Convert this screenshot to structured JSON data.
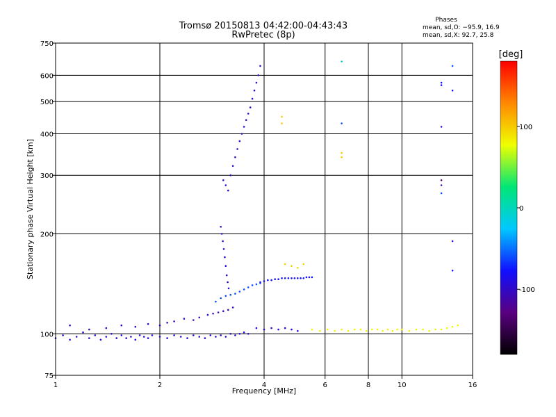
{
  "chart_data": {
    "type": "scatter",
    "title": "Tromsø 20150813 04:42:00-04:43:43",
    "subtitle": "RwPretec (8p)",
    "xlabel": "Frequency [MHz]",
    "ylabel": "Stationary phase Virtual Height [km]",
    "xscale": "log",
    "yscale": "log",
    "xlim": [
      1,
      16
    ],
    "ylim": [
      75,
      750
    ],
    "xticks": [
      1,
      2,
      4,
      6,
      8,
      10,
      16
    ],
    "yticks": [
      75,
      100,
      200,
      300,
      400,
      500,
      600,
      750
    ],
    "grid": true,
    "phases_box": {
      "heading": "Phases",
      "line_o": "mean, sd,O: −95.9, 16.9",
      "line_x": "mean, sd,X:  92.7, 25.8"
    },
    "colorbar": {
      "label": "[deg]",
      "ticks": [
        100,
        0,
        -100
      ],
      "range": [
        -180,
        180
      ],
      "colors": [
        "#000000",
        "#5a0080",
        "#1010ff",
        "#00c8ff",
        "#00e676",
        "#f0ff00",
        "#ff8800",
        "#ff0000"
      ]
    },
    "series": [
      {
        "points": [
          [
            1.0,
            97,
            -95
          ],
          [
            1.05,
            99,
            -95
          ],
          [
            1.1,
            96,
            -95
          ],
          [
            1.15,
            98,
            -95
          ],
          [
            1.2,
            101,
            -95
          ],
          [
            1.25,
            97,
            -95
          ],
          [
            1.3,
            99,
            -95
          ],
          [
            1.35,
            96,
            -95
          ],
          [
            1.4,
            98,
            -95
          ],
          [
            1.45,
            100,
            -95
          ],
          [
            1.5,
            97,
            -95
          ],
          [
            1.55,
            99,
            -95
          ],
          [
            1.6,
            97,
            -95
          ],
          [
            1.65,
            98,
            -95
          ],
          [
            1.7,
            96,
            -95
          ],
          [
            1.75,
            99,
            -95
          ],
          [
            1.8,
            98,
            -95
          ],
          [
            1.85,
            97,
            -95
          ],
          [
            1.9,
            99,
            -95
          ],
          [
            2.0,
            98,
            -95
          ],
          [
            2.1,
            97,
            -95
          ],
          [
            2.2,
            99,
            -95
          ],
          [
            2.3,
            98,
            -95
          ],
          [
            2.4,
            97,
            -95
          ],
          [
            2.5,
            99,
            -95
          ],
          [
            2.6,
            98,
            -95
          ],
          [
            2.7,
            97,
            -95
          ],
          [
            2.8,
            99,
            -95
          ],
          [
            2.9,
            98,
            -95
          ],
          [
            3.0,
            99,
            -95
          ],
          [
            3.1,
            98,
            -95
          ],
          [
            3.2,
            100,
            -95
          ],
          [
            3.3,
            99,
            -95
          ],
          [
            3.4,
            100,
            -95
          ],
          [
            3.5,
            101,
            -95
          ],
          [
            3.6,
            100,
            -95
          ]
        ]
      },
      {
        "points": [
          [
            1.1,
            106,
            -105
          ],
          [
            1.25,
            103,
            -105
          ],
          [
            1.4,
            104,
            -105
          ],
          [
            1.55,
            106,
            -105
          ],
          [
            1.7,
            105,
            -105
          ],
          [
            1.85,
            107,
            -105
          ],
          [
            2.0,
            106,
            -105
          ],
          [
            2.1,
            108,
            -105
          ],
          [
            2.2,
            109,
            -105
          ],
          [
            2.35,
            111,
            -105
          ],
          [
            2.5,
            110,
            -105
          ],
          [
            2.6,
            112,
            -105
          ],
          [
            2.75,
            114,
            -105
          ],
          [
            2.85,
            115,
            -105
          ],
          [
            2.95,
            116,
            -105
          ],
          [
            3.05,
            117,
            -105
          ],
          [
            3.15,
            118,
            -105
          ],
          [
            3.25,
            120,
            -105
          ]
        ]
      },
      {
        "points": [
          [
            2.9,
            125,
            -60
          ],
          [
            3.0,
            128,
            -60
          ],
          [
            3.1,
            130,
            -60
          ],
          [
            3.2,
            131,
            -60
          ],
          [
            3.3,
            132,
            -60
          ],
          [
            3.4,
            134,
            -60
          ],
          [
            3.5,
            136,
            -60
          ],
          [
            3.6,
            138,
            -60
          ],
          [
            3.7,
            140,
            -60
          ],
          [
            3.8,
            141,
            -60
          ],
          [
            3.9,
            142,
            -60
          ]
        ]
      },
      {
        "points": [
          [
            3.0,
            210,
            -100
          ],
          [
            3.02,
            200,
            -100
          ],
          [
            3.04,
            190,
            -100
          ],
          [
            3.06,
            180,
            -100
          ],
          [
            3.08,
            170,
            -100
          ],
          [
            3.1,
            160,
            -100
          ],
          [
            3.12,
            150,
            -100
          ],
          [
            3.14,
            143,
            -100
          ],
          [
            3.16,
            137,
            -100
          ]
        ]
      },
      {
        "points": [
          [
            3.05,
            290,
            -100
          ],
          [
            3.1,
            280,
            -100
          ],
          [
            3.15,
            270,
            -100
          ],
          [
            3.2,
            300,
            -100
          ],
          [
            3.25,
            320,
            -100
          ],
          [
            3.3,
            340,
            -100
          ],
          [
            3.35,
            360,
            -100
          ],
          [
            3.4,
            380,
            -100
          ],
          [
            3.45,
            400,
            -100
          ],
          [
            3.5,
            420,
            -100
          ],
          [
            3.55,
            440,
            -100
          ],
          [
            3.6,
            460,
            -100
          ],
          [
            3.65,
            480,
            -100
          ],
          [
            3.7,
            510,
            -100
          ],
          [
            3.75,
            540,
            -100
          ],
          [
            3.8,
            570,
            -100
          ],
          [
            3.85,
            600,
            -100
          ],
          [
            3.9,
            640,
            -100
          ]
        ]
      },
      {
        "points": [
          [
            3.9,
            143,
            -80
          ],
          [
            4.0,
            144,
            -80
          ],
          [
            4.1,
            145,
            -80
          ],
          [
            4.2,
            145,
            -80
          ],
          [
            4.3,
            146,
            -80
          ],
          [
            4.4,
            146,
            -80
          ],
          [
            4.5,
            147,
            -80
          ],
          [
            4.6,
            147,
            -80
          ],
          [
            4.7,
            147,
            -80
          ],
          [
            4.8,
            147,
            -80
          ],
          [
            4.9,
            147,
            -80
          ],
          [
            5.0,
            147,
            -80
          ],
          [
            5.1,
            147,
            -80
          ],
          [
            5.2,
            147,
            -80
          ],
          [
            5.3,
            148,
            -80
          ],
          [
            5.4,
            148,
            -80
          ],
          [
            5.5,
            148,
            -80
          ]
        ]
      },
      {
        "points": [
          [
            4.6,
            162,
            95
          ],
          [
            4.8,
            160,
            95
          ],
          [
            5.0,
            158,
            95
          ],
          [
            5.2,
            162,
            95
          ]
        ]
      },
      {
        "points": [
          [
            3.8,
            104,
            -90
          ],
          [
            4.0,
            103,
            -90
          ],
          [
            4.2,
            104,
            -90
          ],
          [
            4.4,
            103,
            -90
          ],
          [
            4.6,
            104,
            -90
          ],
          [
            4.8,
            103,
            -90
          ],
          [
            5.0,
            102,
            -90
          ]
        ]
      },
      {
        "points": [
          [
            5.5,
            103,
            80
          ],
          [
            5.8,
            102,
            80
          ],
          [
            6.1,
            103,
            80
          ],
          [
            6.4,
            102,
            80
          ],
          [
            6.7,
            103,
            80
          ],
          [
            7.0,
            102,
            80
          ],
          [
            7.3,
            103,
            80
          ],
          [
            7.6,
            103,
            80
          ],
          [
            7.9,
            102,
            80
          ],
          [
            8.2,
            103,
            80
          ],
          [
            8.5,
            103,
            80
          ],
          [
            8.8,
            102,
            80
          ],
          [
            9.1,
            103,
            80
          ],
          [
            9.4,
            102,
            80
          ],
          [
            9.7,
            103,
            80
          ],
          [
            10.0,
            103,
            80
          ],
          [
            10.5,
            102,
            80
          ],
          [
            11.0,
            103,
            80
          ],
          [
            11.5,
            103,
            80
          ],
          [
            12.0,
            102,
            80
          ],
          [
            12.5,
            103,
            80
          ],
          [
            13.0,
            103,
            80
          ],
          [
            13.5,
            104,
            80
          ],
          [
            14.0,
            105,
            80
          ],
          [
            14.5,
            106,
            80
          ]
        ]
      },
      {
        "points": [
          [
            4.5,
            450,
            100
          ],
          [
            4.5,
            430,
            100
          ],
          [
            6.7,
            350,
            100
          ],
          [
            6.7,
            340,
            100
          ]
        ]
      },
      {
        "points": [
          [
            6.7,
            660,
            -10
          ],
          [
            6.7,
            430,
            -60
          ],
          [
            13.0,
            570,
            -80
          ],
          [
            13.0,
            560,
            -80
          ],
          [
            14.0,
            540,
            -80
          ],
          [
            14.0,
            640,
            -60
          ],
          [
            13.0,
            420,
            -100
          ],
          [
            13.0,
            290,
            -140
          ],
          [
            13.0,
            280,
            -110
          ],
          [
            13.0,
            265,
            -60
          ],
          [
            14.0,
            190,
            -100
          ],
          [
            14.0,
            155,
            -80
          ]
        ]
      }
    ]
  }
}
